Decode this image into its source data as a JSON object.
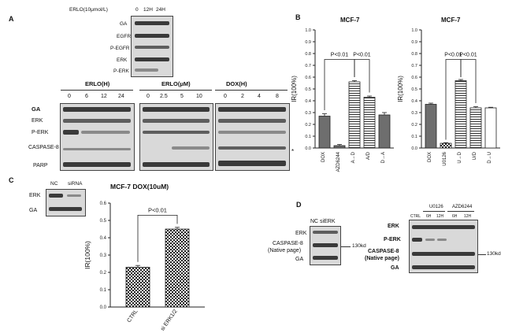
{
  "panels": {
    "A": {
      "letter": "A",
      "erlo_treatment": "ERLO(10μmol/L)",
      "time_labels": [
        "0",
        "12H",
        "24H"
      ],
      "top_rows": [
        "GA",
        "EGFR",
        "P-EGFR",
        "ERK",
        "P-ERK"
      ],
      "groups": [
        {
          "title": "ERLO(H)",
          "ticks": [
            "0",
            "6",
            "12",
            "24"
          ]
        },
        {
          "title": "ERLO(μM)",
          "ticks": [
            "0",
            "2.5",
            "5",
            "10"
          ]
        },
        {
          "title": "DOX(H)",
          "ticks": [
            "0",
            "2",
            "4",
            "8"
          ]
        }
      ],
      "rows": [
        "GA",
        "ERK",
        "P-ERK",
        "CASPASE-8",
        "PARP"
      ],
      "asterisk": "*"
    },
    "B": {
      "letter": "B",
      "ylabel": "IR(100%)",
      "left_title": "MCF-7",
      "right_title": "MCF-7",
      "pvalue": "P<0.01",
      "yticks": [
        "0.0",
        "0.1",
        "0.2",
        "0.3",
        "0.4",
        "0.5",
        "0.6",
        "0.7",
        "0.8",
        "0.9",
        "1.0"
      ]
    },
    "C": {
      "letter": "C",
      "blot_cols": [
        "NC",
        "siRNA"
      ],
      "blot_rows": [
        "ERK",
        "GA"
      ],
      "title": "MCF-7 DOX(10uM)",
      "ylabel": "IR(100%)",
      "pvalue": "P<0.01",
      "yticks": [
        "0.0",
        "0.1",
        "0.2",
        "0.3",
        "0.4",
        "0.5",
        "0.6"
      ]
    },
    "D": {
      "letter": "D",
      "left_cols": "NC siERK",
      "left_rows": [
        "ERK",
        "CASPASE-8",
        "(Native page)",
        "GA"
      ],
      "right_groups": [
        "U0126",
        "AZD6244"
      ],
      "right_cols": [
        "CTRL",
        "6H",
        "12H",
        "6H",
        "12H"
      ],
      "right_rows": [
        "ERK",
        "P-ERK",
        "CASPASE-8",
        "(Native page)",
        "GA"
      ],
      "marker": "130kd"
    }
  },
  "chart_data": [
    {
      "type": "bar",
      "title": "MCF-7",
      "ylabel": "IR(100%)",
      "categories": [
        "DOX",
        "AZD6244",
        "A→D",
        "A/D",
        "D→A"
      ],
      "values": [
        0.27,
        0.02,
        0.56,
        0.43,
        0.28
      ],
      "errors": [
        0.02,
        0.01,
        0.01,
        0.01,
        0.02
      ],
      "fills": [
        "solid-gray",
        "solid-gray",
        "h-lines",
        "h-lines",
        "solid-gray"
      ],
      "ylim": [
        0,
        1.0
      ],
      "annotations": [
        "P<0.01",
        "P<0.01"
      ]
    },
    {
      "type": "bar",
      "title": "MCF-7",
      "ylabel": "IR(100%)",
      "categories": [
        "DOX",
        "U0126",
        "U→D",
        "U/D",
        "D→U"
      ],
      "values": [
        0.37,
        0.04,
        0.57,
        0.34,
        0.34
      ],
      "errors": [
        0.01,
        0.005,
        0.01,
        0.01,
        0.005
      ],
      "fills": [
        "solid-gray",
        "check",
        "h-lines",
        "h-lines",
        "white"
      ],
      "ylim": [
        0,
        1.0
      ],
      "annotations": [
        "P<0.01",
        "P<0.01"
      ]
    },
    {
      "type": "bar",
      "title": "MCF-7 DOX(10uM)",
      "ylabel": "IR(100%)",
      "categories": [
        "CTRL",
        "si ERK1/2"
      ],
      "values": [
        0.23,
        0.45
      ],
      "errors": [
        0.01,
        0.01
      ],
      "fills": [
        "check",
        "check"
      ],
      "ylim": [
        0,
        0.6
      ],
      "annotations": [
        "P<0.01"
      ]
    }
  ]
}
